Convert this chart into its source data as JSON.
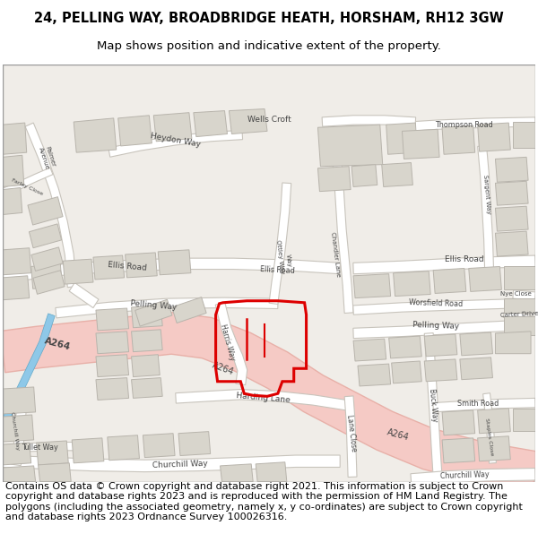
{
  "title_line1": "24, PELLING WAY, BROADBRIDGE HEATH, HORSHAM, RH12 3GW",
  "title_line2": "Map shows position and indicative extent of the property.",
  "footer_text": "Contains OS data © Crown copyright and database right 2021. This information is subject to Crown copyright and database rights 2023 and is reproduced with the permission of HM Land Registry. The polygons (including the associated geometry, namely x, y co-ordinates) are subject to Crown copyright and database rights 2023 Ordnance Survey 100026316.",
  "bg_color": "#ffffff",
  "map_bg": "#f0ede8",
  "building_fill": "#d8d5cc",
  "building_stroke": "#b8b4ac",
  "road_white": "#ffffff",
  "road_gray_stroke": "#c8c4bc",
  "road_pink_fill": "#f5cac5",
  "road_pink_stroke": "#e8b0a8",
  "blue_road": "#8ec8e8",
  "red_outline": "#dd0000",
  "title_fontsize": 10.5,
  "subtitle_fontsize": 9.5,
  "footer_fontsize": 8.0,
  "text_color": "#444444"
}
